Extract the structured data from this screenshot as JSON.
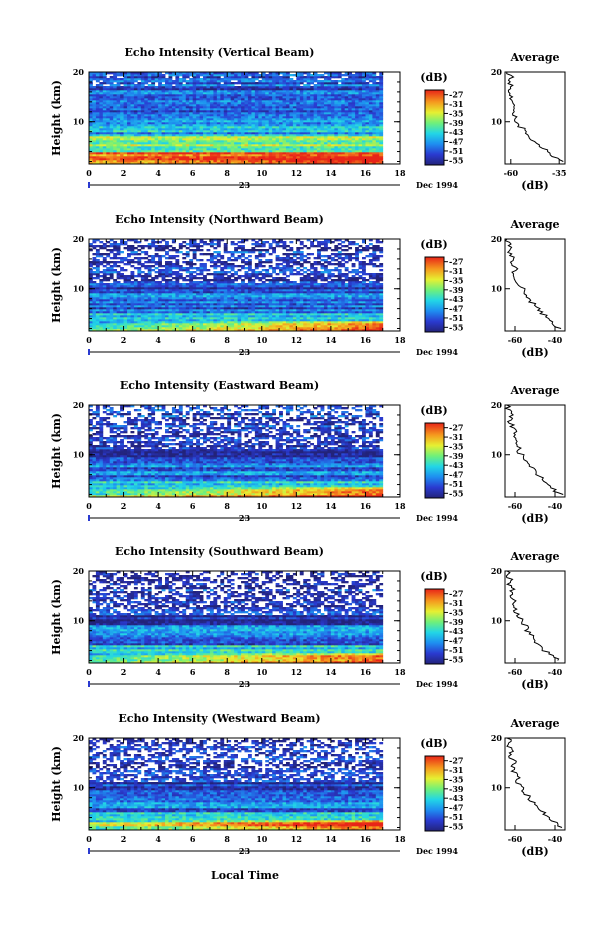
{
  "figure": {
    "x_axis_label": "Local Time",
    "date_day": "23",
    "date_suffix": "Dec 1994",
    "y_axis_label": "Height (km)",
    "avg_title": "Average",
    "avg_xlabel": "(dB)",
    "colorbar_unit": "(dB)"
  },
  "chart_data": [
    {
      "type": "heatmap",
      "title": "Echo Intensity (Vertical Beam)",
      "xlabel": "Local Time",
      "ylabel": "Height (km)",
      "x_ticks": [
        "0",
        "2",
        "4",
        "6",
        "8",
        "10",
        "12",
        "14",
        "16",
        "18"
      ],
      "y_ticks": [
        "10",
        "20"
      ],
      "xlim": [
        0,
        18
      ],
      "ylim": [
        1.5,
        20
      ],
      "colorbar_ticks": [
        "-27",
        "-31",
        "-35",
        "-39",
        "-43",
        "-47",
        "-51",
        "-55"
      ],
      "colorbar_range": [
        -57,
        -25
      ],
      "profile": {
        "title": "Average",
        "xlabel": "(dB)",
        "x_ticks": [
          "-60",
          "-35"
        ],
        "xlim": [
          -63,
          -32
        ],
        "heights": [
          2,
          3,
          4,
          5,
          6,
          7,
          8,
          9,
          10,
          11,
          12,
          13,
          14,
          15,
          16,
          17,
          18,
          19,
          20
        ],
        "values": [
          -34,
          -38,
          -41,
          -45,
          -48,
          -50,
          -52,
          -55,
          -57,
          -58,
          -58,
          -59,
          -60,
          -59,
          -61,
          -60,
          -61,
          -60,
          -62
        ]
      }
    },
    {
      "type": "heatmap",
      "title": "Echo Intensity (Northward Beam)",
      "xlabel": "Local Time",
      "ylabel": "Height (km)",
      "x_ticks": [
        "0",
        "2",
        "4",
        "6",
        "8",
        "10",
        "12",
        "14",
        "16",
        "18"
      ],
      "y_ticks": [
        "10",
        "20"
      ],
      "xlim": [
        0,
        18
      ],
      "ylim": [
        1.5,
        20
      ],
      "colorbar_ticks": [
        "-27",
        "-31",
        "-35",
        "-39",
        "-43",
        "-47",
        "-51",
        "-55"
      ],
      "colorbar_range": [
        -57,
        -25
      ],
      "profile": {
        "title": "Average",
        "xlabel": "(dB)",
        "x_ticks": [
          "-60",
          "-40"
        ],
        "xlim": [
          -65,
          -35
        ],
        "heights": [
          2,
          3,
          4,
          5,
          6,
          7,
          8,
          9,
          10,
          11,
          12,
          13,
          14,
          15,
          16,
          17,
          18,
          19,
          20
        ],
        "values": [
          -38,
          -41,
          -44,
          -46,
          -49,
          -51,
          -53,
          -55,
          -56,
          -58,
          -59,
          -61,
          -60,
          -62,
          -61,
          -63,
          -62,
          -63,
          -64
        ]
      }
    },
    {
      "type": "heatmap",
      "title": "Echo Intensity (Eastward Beam)",
      "xlabel": "Local Time",
      "ylabel": "Height (km)",
      "x_ticks": [
        "0",
        "2",
        "4",
        "6",
        "8",
        "10",
        "12",
        "14",
        "16",
        "18"
      ],
      "y_ticks": [
        "10",
        "20"
      ],
      "xlim": [
        0,
        18
      ],
      "ylim": [
        1.5,
        20
      ],
      "colorbar_ticks": [
        "-27",
        "-31",
        "-35",
        "-39",
        "-43",
        "-47",
        "-51",
        "-55"
      ],
      "colorbar_range": [
        -57,
        -25
      ],
      "profile": {
        "title": "Average",
        "xlabel": "(dB)",
        "x_ticks": [
          "-60",
          "-40"
        ],
        "xlim": [
          -65,
          -35
        ],
        "heights": [
          2,
          3,
          4,
          5,
          6,
          7,
          8,
          9,
          10,
          11,
          12,
          13,
          14,
          15,
          16,
          17,
          18,
          19,
          20
        ],
        "values": [
          -37,
          -41,
          -44,
          -46,
          -49,
          -51,
          -53,
          -55,
          -57,
          -58,
          -59,
          -61,
          -60,
          -61,
          -62,
          -63,
          -62,
          -63,
          -64
        ]
      }
    },
    {
      "type": "heatmap",
      "title": "Echo Intensity (Southward Beam)",
      "xlabel": "Local Time",
      "ylabel": "Height (km)",
      "x_ticks": [
        "0",
        "2",
        "4",
        "6",
        "8",
        "10",
        "12",
        "14",
        "16",
        "18"
      ],
      "y_ticks": [
        "10",
        "20"
      ],
      "xlim": [
        0,
        18
      ],
      "ylim": [
        1.5,
        20
      ],
      "colorbar_ticks": [
        "-27",
        "-31",
        "-35",
        "-39",
        "-43",
        "-47",
        "-51",
        "-55"
      ],
      "colorbar_range": [
        -57,
        -25
      ],
      "profile": {
        "title": "Average",
        "xlabel": "(dB)",
        "x_ticks": [
          "-60",
          "-40"
        ],
        "xlim": [
          -65,
          -35
        ],
        "heights": [
          2,
          3,
          4,
          5,
          6,
          7,
          8,
          9,
          10,
          11,
          12,
          13,
          14,
          15,
          16,
          17,
          18,
          19,
          20
        ],
        "values": [
          -38,
          -42,
          -45,
          -47,
          -50,
          -52,
          -54,
          -55,
          -57,
          -58,
          -60,
          -60,
          -61,
          -62,
          -61,
          -63,
          -62,
          -63,
          -64
        ]
      }
    },
    {
      "type": "heatmap",
      "title": "Echo Intensity (Westward Beam)",
      "xlabel": "Local Time",
      "ylabel": "Height (km)",
      "x_ticks": [
        "0",
        "2",
        "4",
        "6",
        "8",
        "10",
        "12",
        "14",
        "16",
        "18"
      ],
      "y_ticks": [
        "10",
        "20"
      ],
      "xlim": [
        0,
        18
      ],
      "ylim": [
        1.5,
        20
      ],
      "colorbar_ticks": [
        "-27",
        "-31",
        "-35",
        "-39",
        "-43",
        "-47",
        "-51",
        "-55"
      ],
      "colorbar_range": [
        -57,
        -25
      ],
      "profile": {
        "title": "Average",
        "xlabel": "(dB)",
        "x_ticks": [
          "-60",
          "-40"
        ],
        "xlim": [
          -65,
          -35
        ],
        "heights": [
          2,
          3,
          4,
          5,
          6,
          7,
          8,
          9,
          10,
          11,
          12,
          13,
          14,
          15,
          16,
          17,
          18,
          19,
          20
        ],
        "values": [
          -37,
          -40,
          -44,
          -46,
          -48,
          -51,
          -53,
          -55,
          -56,
          -58,
          -59,
          -60,
          -61,
          -60,
          -62,
          -62,
          -63,
          -62,
          -64
        ]
      }
    }
  ]
}
